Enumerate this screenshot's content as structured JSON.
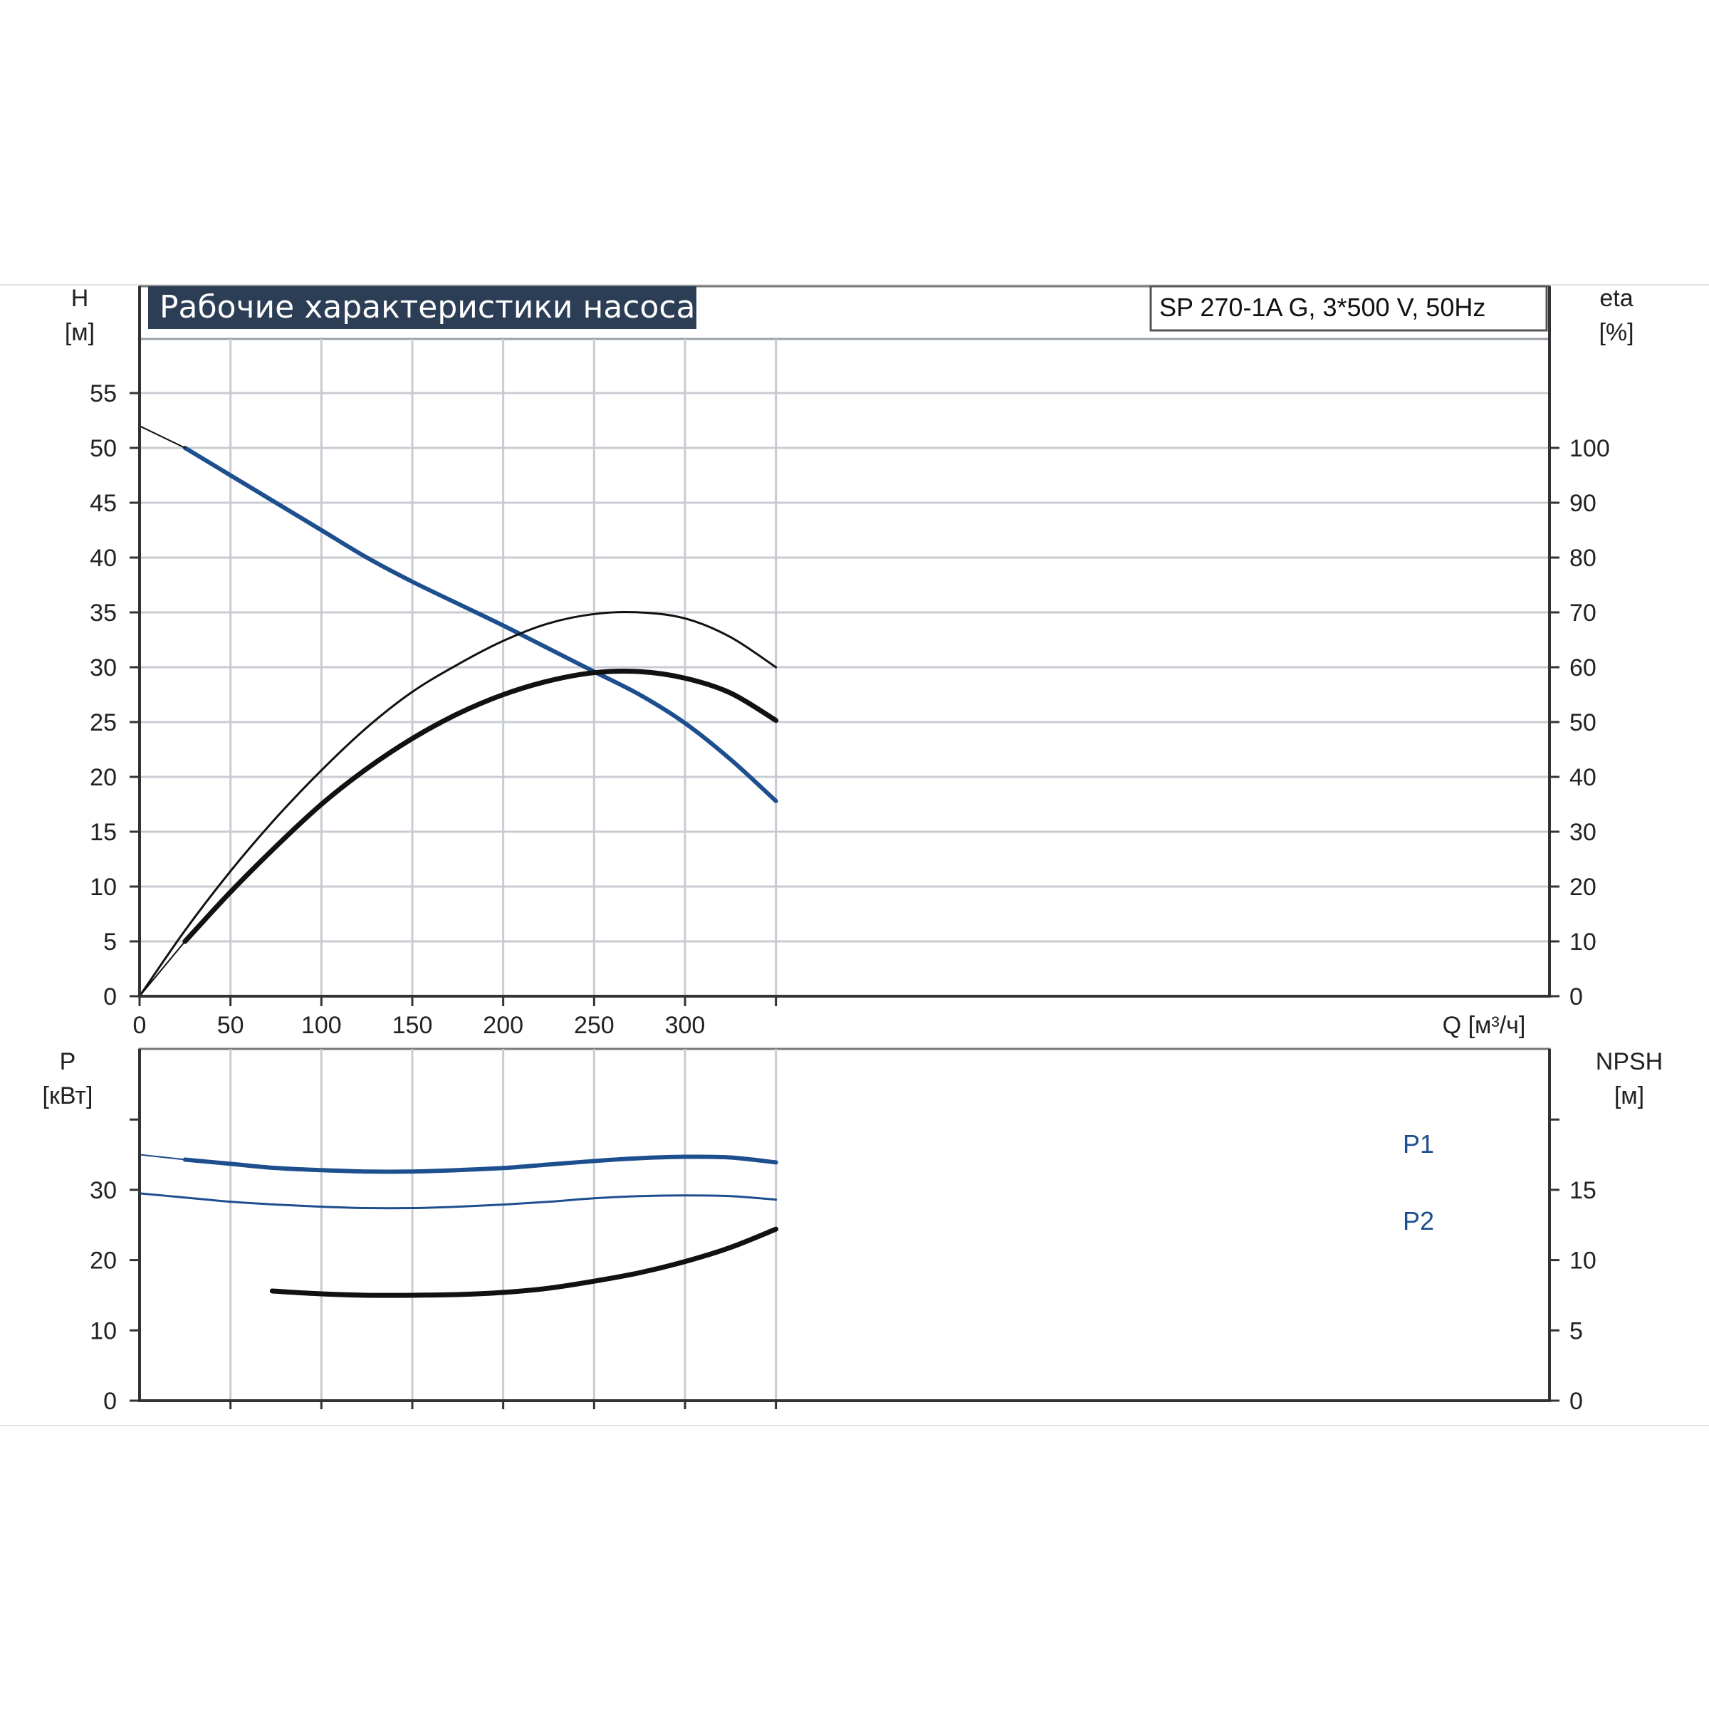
{
  "title": "Рабочие характеристики насоса",
  "model": "SP 270-1A G, 3*500 V, 50Hz",
  "colors": {
    "blue": "#1d4f8f",
    "black": "#111111",
    "title_bg": "#2c3e55",
    "grid": "#c8ccd2"
  },
  "chart_data": [
    {
      "type": "line",
      "name": "top",
      "xlabel": "Q [м³/ч]",
      "ylabel_left": [
        "H",
        "[м]"
      ],
      "ylabel_right": [
        "eta",
        "[%]"
      ],
      "xlim": [
        0,
        370
      ],
      "ylim_left": [
        0,
        60
      ],
      "ylim_right": [
        0,
        120
      ],
      "x_ticks": [
        "0",
        "50",
        "100",
        "150",
        "200",
        "250",
        "300"
      ],
      "y_ticks_left": [
        "0",
        "5",
        "10",
        "15",
        "20",
        "25",
        "30",
        "35",
        "40",
        "45",
        "50",
        "55"
      ],
      "y_ticks_right": [
        "0",
        "10",
        "20",
        "30",
        "40",
        "50",
        "60",
        "70",
        "80",
        "90",
        "100"
      ],
      "grid": true,
      "series": [
        {
          "axis": "left",
          "color": "#1d4f8f",
          "width": 6,
          "x": [
            25,
            50,
            75,
            100,
            125,
            150,
            175,
            200,
            225,
            250,
            275,
            300,
            325,
            350
          ],
          "y": [
            50,
            47.5,
            45,
            42.5,
            40,
            37.8,
            35.8,
            33.8,
            31.7,
            29.6,
            27.5,
            24.9,
            21.6,
            17.8
          ]
        },
        {
          "axis": "left",
          "color": "#111111",
          "width": 2,
          "x": [
            0,
            25
          ],
          "y": [
            52,
            50
          ]
        },
        {
          "axis": "right",
          "color": "#111111",
          "width": 3,
          "x": [
            0,
            25,
            50,
            75,
            100,
            125,
            150,
            175,
            200,
            225,
            250,
            275,
            300,
            325,
            350
          ],
          "y": [
            0,
            12,
            22.8,
            32.5,
            41.2,
            49,
            55.5,
            60.5,
            64.8,
            68,
            69.7,
            70,
            68.9,
            65.5,
            60
          ]
        },
        {
          "axis": "right",
          "color": "#111111",
          "width": 7,
          "x": [
            25,
            50,
            75,
            100,
            125,
            150,
            175,
            200,
            225,
            250,
            275,
            300,
            325,
            350
          ],
          "y": [
            10,
            19,
            27.3,
            35,
            41.5,
            47,
            51.5,
            55,
            57.5,
            59,
            59.2,
            58,
            55.3,
            50.3
          ]
        },
        {
          "axis": "right",
          "color": "#111111",
          "width": 2,
          "x": [
            0,
            25
          ],
          "y": [
            0,
            10
          ]
        }
      ]
    },
    {
      "type": "line",
      "name": "bottom",
      "ylabel_left": [
        "P",
        "[кВт]"
      ],
      "ylabel_right": [
        "NPSH",
        "[м]"
      ],
      "xlim": [
        0,
        370
      ],
      "ylim_left": [
        0,
        40
      ],
      "ylim_right": [
        0,
        20
      ],
      "y_ticks_left": [
        "0",
        "10",
        "20",
        "30"
      ],
      "y_ticks_right": [
        "0",
        "5",
        "10",
        "15"
      ],
      "grid": true,
      "labels": [
        "P1",
        "P2"
      ],
      "series": [
        {
          "name": "P1",
          "axis": "left",
          "color": "#1d4f8f",
          "width": 6,
          "x": [
            25,
            50,
            75,
            100,
            125,
            150,
            175,
            200,
            225,
            250,
            275,
            300,
            325,
            350
          ],
          "y": [
            34.3,
            33.7,
            33.1,
            32.8,
            32.6,
            32.6,
            32.8,
            33.1,
            33.6,
            34.1,
            34.5,
            34.7,
            34.6,
            33.9
          ]
        },
        {
          "name": "",
          "axis": "left",
          "color": "#1d4f8f",
          "width": 2,
          "x": [
            0,
            25
          ],
          "y": [
            35,
            34.3
          ]
        },
        {
          "name": "P2",
          "axis": "left",
          "color": "#1d4f8f",
          "width": 3,
          "x": [
            0,
            25,
            50,
            75,
            100,
            125,
            150,
            175,
            200,
            225,
            250,
            275,
            300,
            325,
            350
          ],
          "y": [
            29.5,
            28.9,
            28.3,
            27.9,
            27.6,
            27.4,
            27.4,
            27.6,
            27.9,
            28.3,
            28.8,
            29.1,
            29.2,
            29.1,
            28.6
          ]
        },
        {
          "name": "NPSH",
          "axis": "right",
          "color": "#111111",
          "width": 7,
          "x": [
            73,
            100,
            125,
            150,
            175,
            200,
            225,
            250,
            275,
            300,
            325,
            350
          ],
          "y": [
            7.8,
            7.6,
            7.5,
            7.5,
            7.55,
            7.7,
            8.0,
            8.5,
            9.1,
            9.9,
            10.9,
            12.2
          ]
        }
      ]
    }
  ]
}
